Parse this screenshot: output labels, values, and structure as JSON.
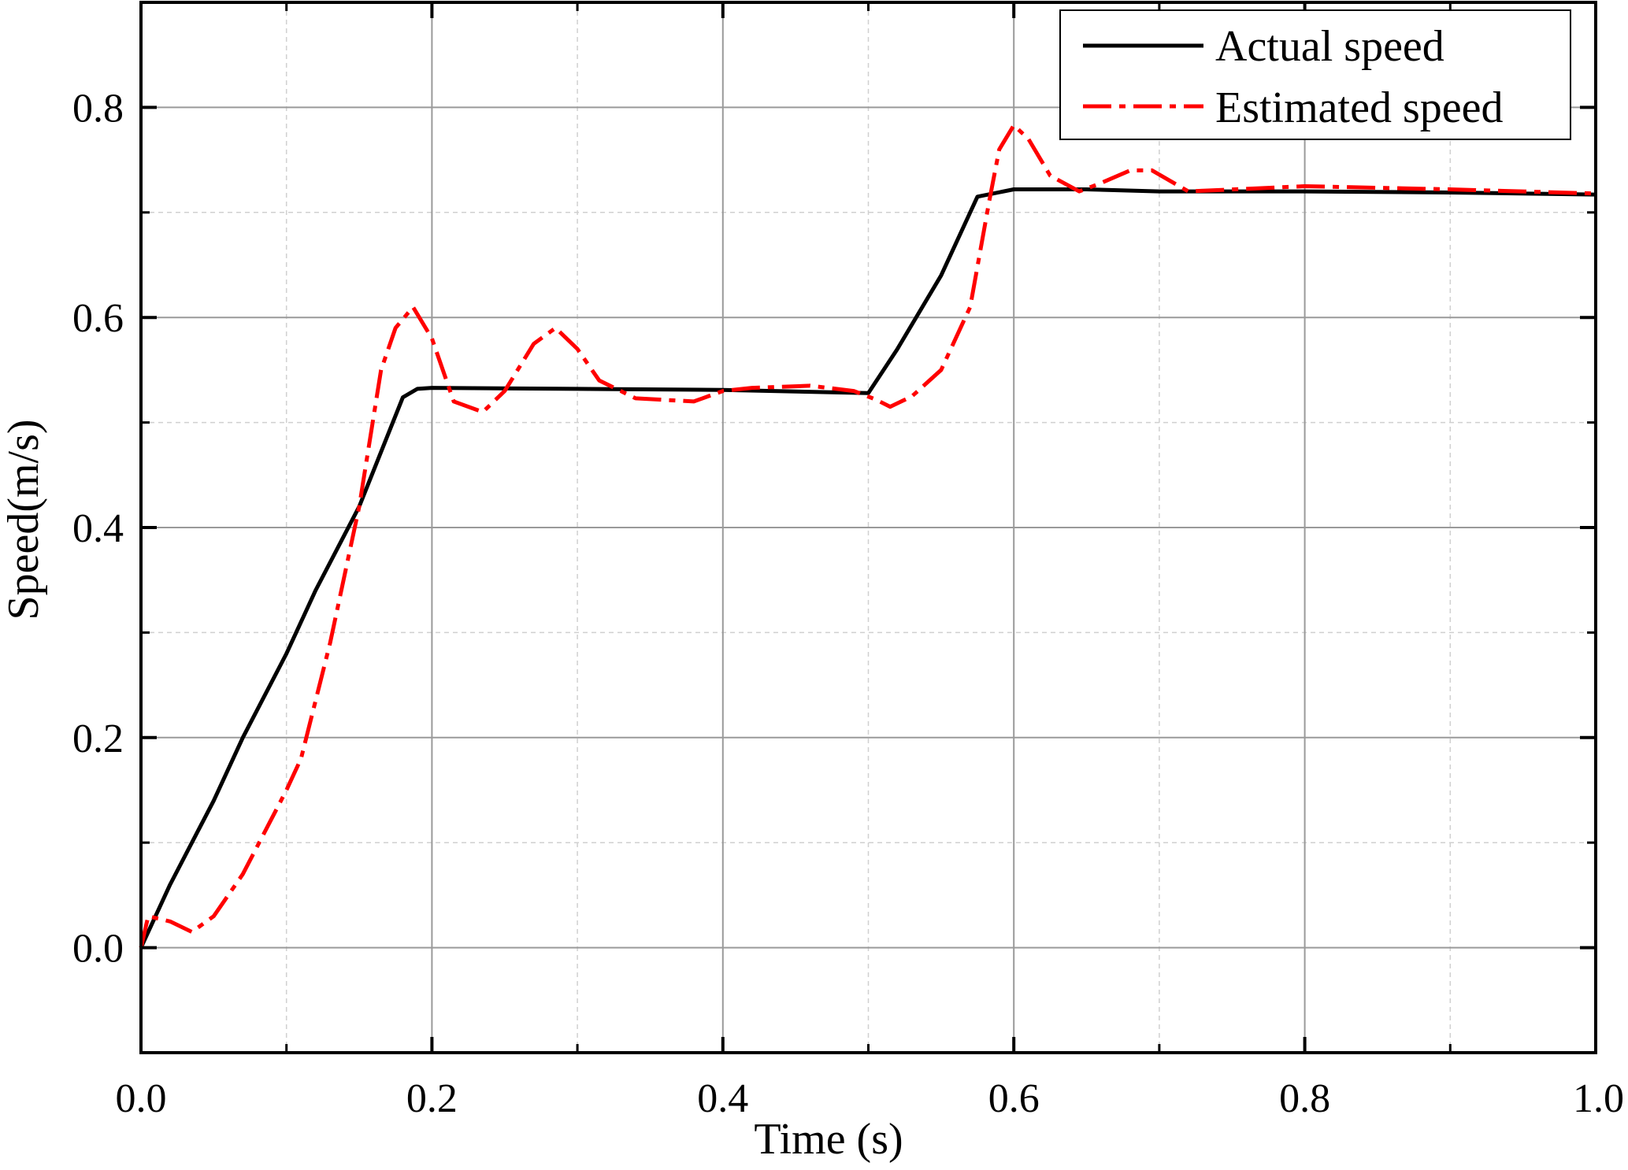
{
  "chart_data": {
    "type": "line",
    "title": "",
    "xlabel": "Time (s)",
    "ylabel": "Speed(m/s)",
    "xlim": [
      0.0,
      1.0
    ],
    "ylim": [
      -0.1,
      0.9
    ],
    "x_ticks": [
      0.0,
      0.2,
      0.4,
      0.6,
      0.8,
      1.0
    ],
    "x_tick_labels": [
      "0.0",
      "0.2",
      "0.4",
      "0.6",
      "0.8",
      "1.0"
    ],
    "y_ticks": [
      0.0,
      0.2,
      0.4,
      0.6,
      0.8
    ],
    "y_tick_labels": [
      "0.0",
      "0.2",
      "0.4",
      "0.6",
      "0.8"
    ],
    "grid": true,
    "legend_position": "top-right",
    "series": [
      {
        "name": "Actual speed",
        "color": "#000000",
        "style": "solid",
        "points": [
          [
            0.0,
            0.0
          ],
          [
            0.02,
            0.06
          ],
          [
            0.05,
            0.14
          ],
          [
            0.07,
            0.2
          ],
          [
            0.1,
            0.28
          ],
          [
            0.12,
            0.34
          ],
          [
            0.15,
            0.42
          ],
          [
            0.18,
            0.524
          ],
          [
            0.19,
            0.532
          ],
          [
            0.2,
            0.533
          ],
          [
            0.3,
            0.532
          ],
          [
            0.4,
            0.531
          ],
          [
            0.5,
            0.528
          ],
          [
            0.52,
            0.57
          ],
          [
            0.55,
            0.64
          ],
          [
            0.575,
            0.715
          ],
          [
            0.6,
            0.722
          ],
          [
            0.65,
            0.722
          ],
          [
            0.7,
            0.72
          ],
          [
            0.8,
            0.72
          ],
          [
            0.9,
            0.719
          ],
          [
            1.0,
            0.717
          ]
        ]
      },
      {
        "name": "Estimated speed",
        "color": "#ff0000",
        "style": "dashdot",
        "points": [
          [
            0.0,
            0.0
          ],
          [
            0.005,
            0.03
          ],
          [
            0.02,
            0.025
          ],
          [
            0.035,
            0.015
          ],
          [
            0.05,
            0.03
          ],
          [
            0.07,
            0.07
          ],
          [
            0.1,
            0.15
          ],
          [
            0.11,
            0.18
          ],
          [
            0.13,
            0.29
          ],
          [
            0.15,
            0.42
          ],
          [
            0.165,
            0.55
          ],
          [
            0.175,
            0.59
          ],
          [
            0.187,
            0.61
          ],
          [
            0.2,
            0.58
          ],
          [
            0.215,
            0.52
          ],
          [
            0.235,
            0.51
          ],
          [
            0.25,
            0.53
          ],
          [
            0.27,
            0.575
          ],
          [
            0.285,
            0.59
          ],
          [
            0.3,
            0.57
          ],
          [
            0.315,
            0.54
          ],
          [
            0.34,
            0.523
          ],
          [
            0.38,
            0.52
          ],
          [
            0.4,
            0.53
          ],
          [
            0.42,
            0.533
          ],
          [
            0.46,
            0.535
          ],
          [
            0.49,
            0.53
          ],
          [
            0.505,
            0.522
          ],
          [
            0.515,
            0.515
          ],
          [
            0.53,
            0.525
          ],
          [
            0.55,
            0.55
          ],
          [
            0.57,
            0.61
          ],
          [
            0.583,
            0.71
          ],
          [
            0.59,
            0.76
          ],
          [
            0.6,
            0.783
          ],
          [
            0.61,
            0.77
          ],
          [
            0.625,
            0.735
          ],
          [
            0.645,
            0.72
          ],
          [
            0.66,
            0.728
          ],
          [
            0.68,
            0.74
          ],
          [
            0.695,
            0.74
          ],
          [
            0.72,
            0.72
          ],
          [
            0.8,
            0.725
          ],
          [
            0.9,
            0.722
          ],
          [
            1.0,
            0.718
          ]
        ]
      }
    ]
  }
}
